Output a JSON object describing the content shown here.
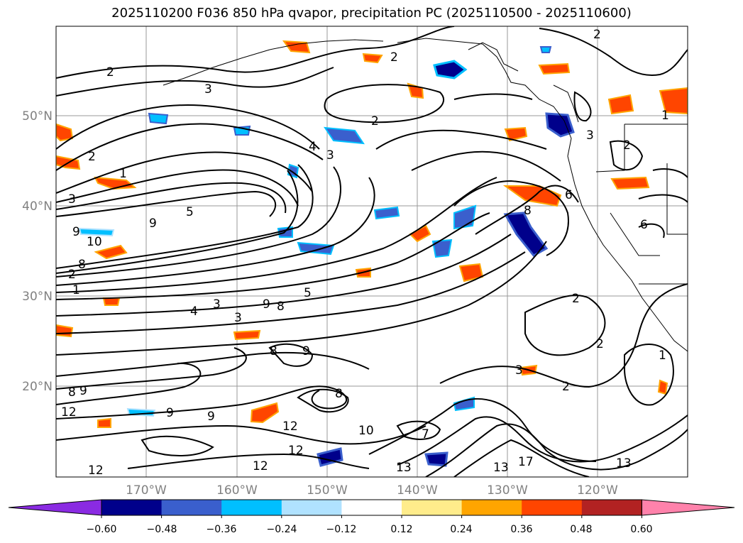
{
  "title": "2025110200 F036 850 hPa qvapor, precipitation PC (2025110500 - 2025110600)",
  "map": {
    "lat_labels": [
      "50°N",
      "40°N",
      "30°N",
      "20°N"
    ],
    "lon_labels": [
      "170°W",
      "160°W",
      "150°W",
      "140°W",
      "130°W",
      "120°W"
    ],
    "contour_labels": [
      "2",
      "3",
      "2",
      "1",
      "2",
      "4",
      "3",
      "2",
      "5",
      "3",
      "3",
      "9",
      "10",
      "8",
      "1",
      "2",
      "4",
      "3",
      "5",
      "9",
      "9",
      "8",
      "8",
      "8",
      "9",
      "9",
      "12",
      "9",
      "9",
      "12",
      "12",
      "12",
      "10",
      "12",
      "13",
      "13",
      "7",
      "17",
      "13",
      "2",
      "2",
      "2",
      "3",
      "2",
      "1",
      "8",
      "6",
      "6",
      "2",
      "3",
      "8",
      "1"
    ]
  },
  "colorbar": {
    "ticks": [
      "−0.60",
      "−0.48",
      "−0.36",
      "−0.24",
      "−0.12",
      "0.12",
      "0.24",
      "0.36",
      "0.48",
      "0.60"
    ],
    "colors": [
      "#8a2be2",
      "#00008b",
      "#3a5fcd",
      "#00bfff",
      "#b0e2ff",
      "#ffffff",
      "#ffec8b",
      "#ffa500",
      "#ff4500",
      "#b22222",
      "#ff82ab"
    ]
  }
}
